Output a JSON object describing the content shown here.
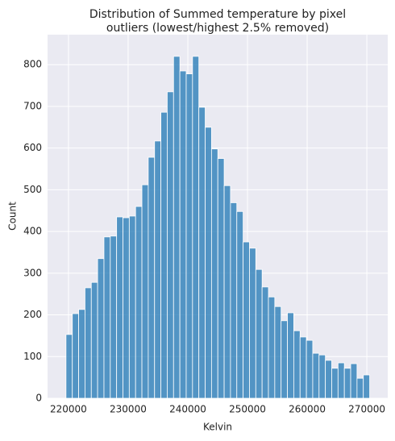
{
  "chart_data": {
    "type": "histogram",
    "title": [
      "Distribution of Summed temperature by pixel",
      "outliers (lowest/highest 2.5% removed)"
    ],
    "x_label": "Kelvin",
    "y_label": "Count",
    "bins": [
      219590,
      220650,
      221710,
      222770,
      223830,
      224890,
      225950,
      227010,
      228070,
      229130,
      230190,
      231250,
      232310,
      233370,
      234430,
      235490,
      236550,
      237610,
      238670,
      239730,
      240790,
      241850,
      242910,
      243970,
      245030,
      246090,
      247150,
      248210,
      249270,
      250330,
      251390,
      252450,
      253510,
      254570,
      255630,
      256690,
      257750,
      258810,
      259870,
      260930,
      261990,
      263050,
      264110,
      265170,
      266230,
      267290,
      268350,
      269410,
      270470
    ],
    "values": [
      153,
      203,
      213,
      265,
      278,
      335,
      387,
      389,
      435,
      433,
      437,
      460,
      512,
      578,
      617,
      686,
      735,
      820,
      785,
      778,
      820,
      698,
      650,
      598,
      575,
      510,
      469,
      448,
      375,
      360,
      309,
      267,
      243,
      220,
      186,
      205,
      162,
      147,
      139,
      108,
      104,
      91,
      72,
      85,
      72,
      83,
      48,
      56
    ],
    "color": "#1f77b4",
    "xlim": [
      216500,
      273500
    ],
    "xticks": [
      220000,
      230000,
      240000,
      250000,
      260000,
      270000
    ],
    "ylim": [
      0,
      872
    ],
    "yticks": [
      0,
      100,
      200,
      300,
      400,
      500,
      600,
      700,
      800
    ],
    "grid": true
  }
}
